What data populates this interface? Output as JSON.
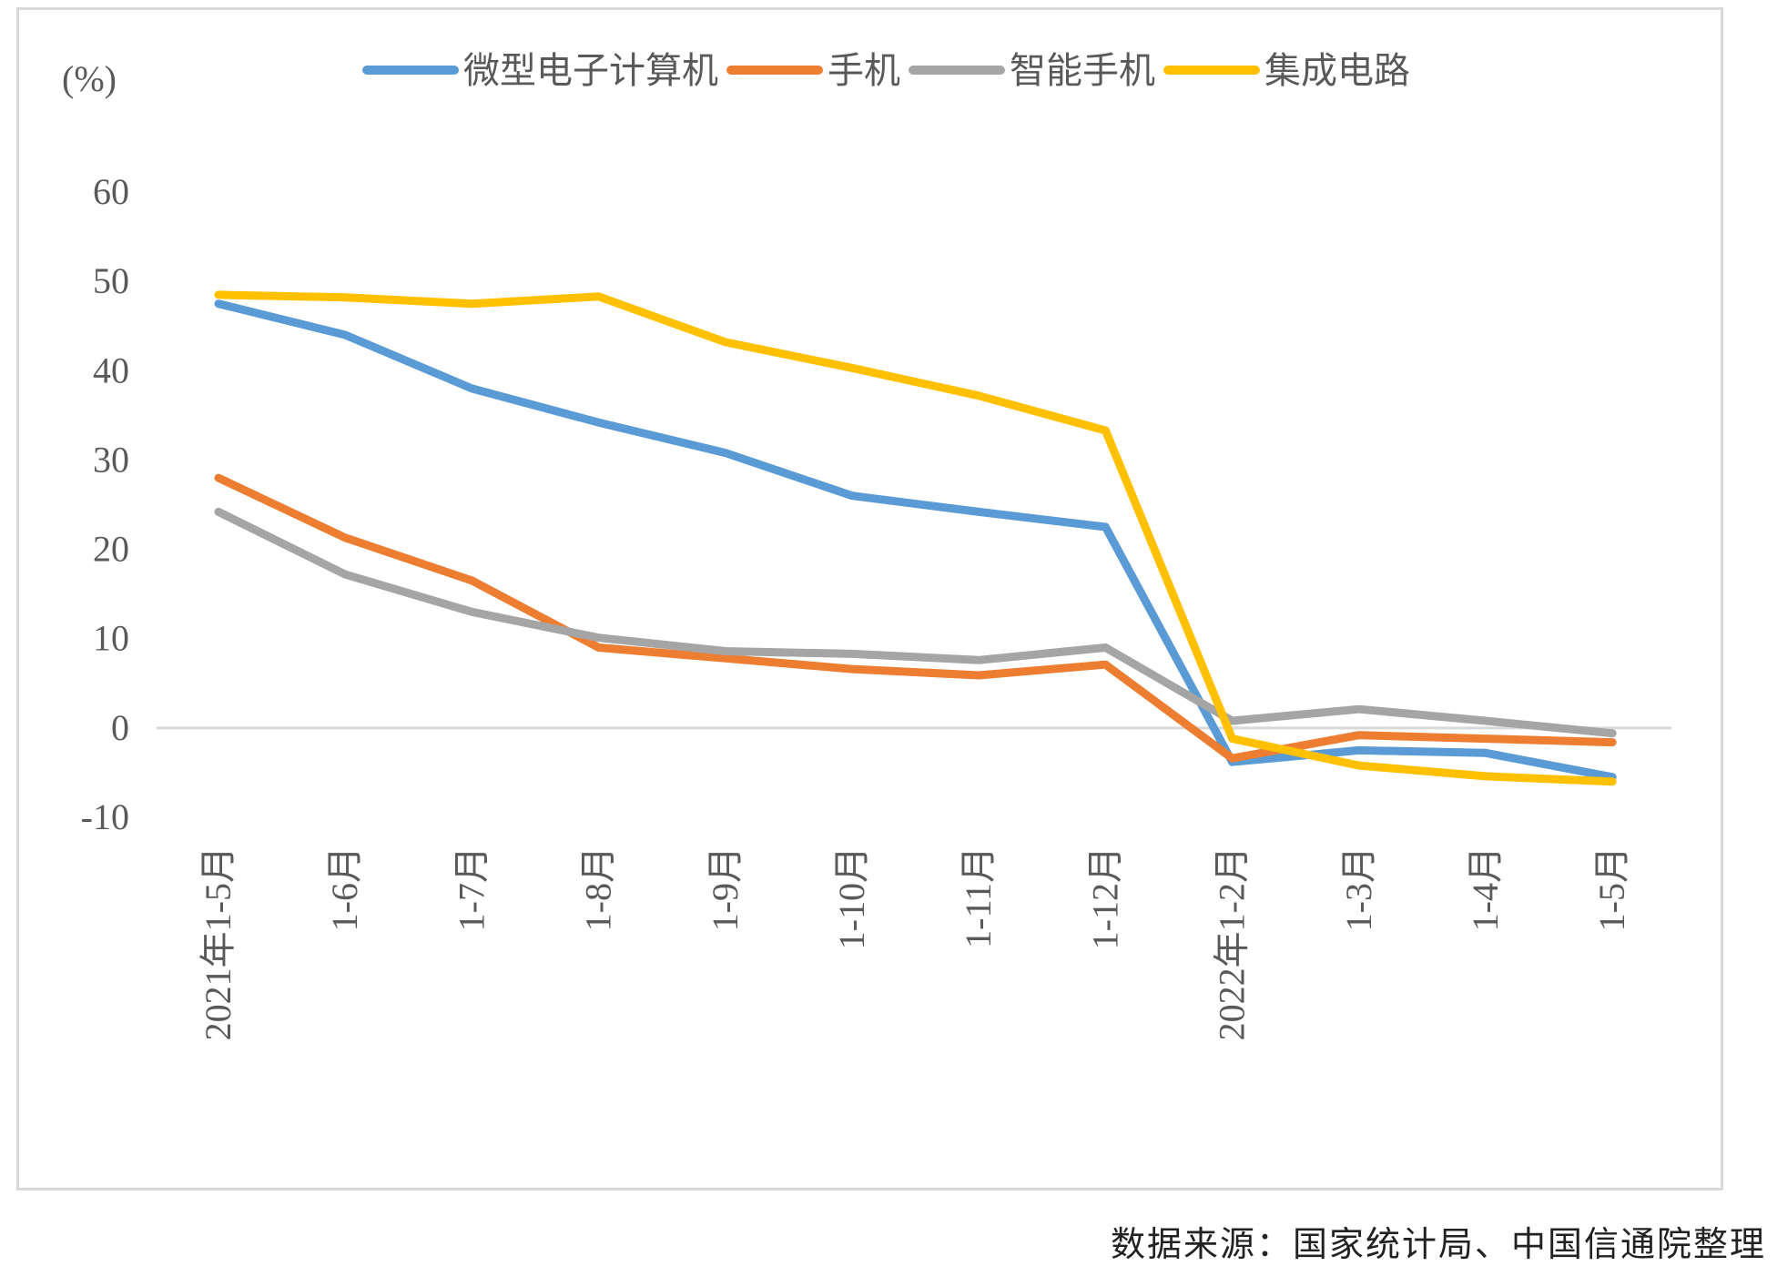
{
  "chart_data": {
    "type": "line",
    "unit_label": "(%)",
    "categories": [
      "2021年1-5月",
      "1-6月",
      "1-7月",
      "1-8月",
      "1-9月",
      "1-10月",
      "1-11月",
      "1-12月",
      "2022年1-2月",
      "1-3月",
      "1-4月",
      "1-5月"
    ],
    "ylim": [
      -10,
      60
    ],
    "yticks": [
      60,
      50,
      40,
      30,
      20,
      10,
      0,
      -10
    ],
    "grid": false,
    "legend_position": "top",
    "series": [
      {
        "name": "微型电子计算机",
        "color": "#5b9bd5",
        "values": [
          47.5,
          44.0,
          38.0,
          34.2,
          30.8,
          26.0,
          24.2,
          22.5,
          -3.8,
          -2.5,
          -2.8,
          -5.5
        ]
      },
      {
        "name": "手机",
        "color": "#ed7d31",
        "values": [
          28.0,
          21.3,
          16.5,
          9.0,
          7.8,
          6.6,
          5.9,
          7.1,
          -3.4,
          -0.8,
          -1.2,
          -1.6
        ]
      },
      {
        "name": "智能手机",
        "color": "#a5a5a5",
        "values": [
          24.2,
          17.2,
          13.0,
          10.1,
          8.6,
          8.3,
          7.6,
          9.0,
          0.8,
          2.1,
          0.8,
          -0.6
        ]
      },
      {
        "name": "集成电路",
        "color": "#ffc000",
        "values": [
          48.5,
          48.2,
          47.5,
          48.3,
          43.2,
          40.3,
          37.2,
          33.3,
          -1.2,
          -4.2,
          -5.4,
          -6.0
        ]
      }
    ]
  },
  "source_note": "数据来源：国家统计局、中国信通院整理"
}
